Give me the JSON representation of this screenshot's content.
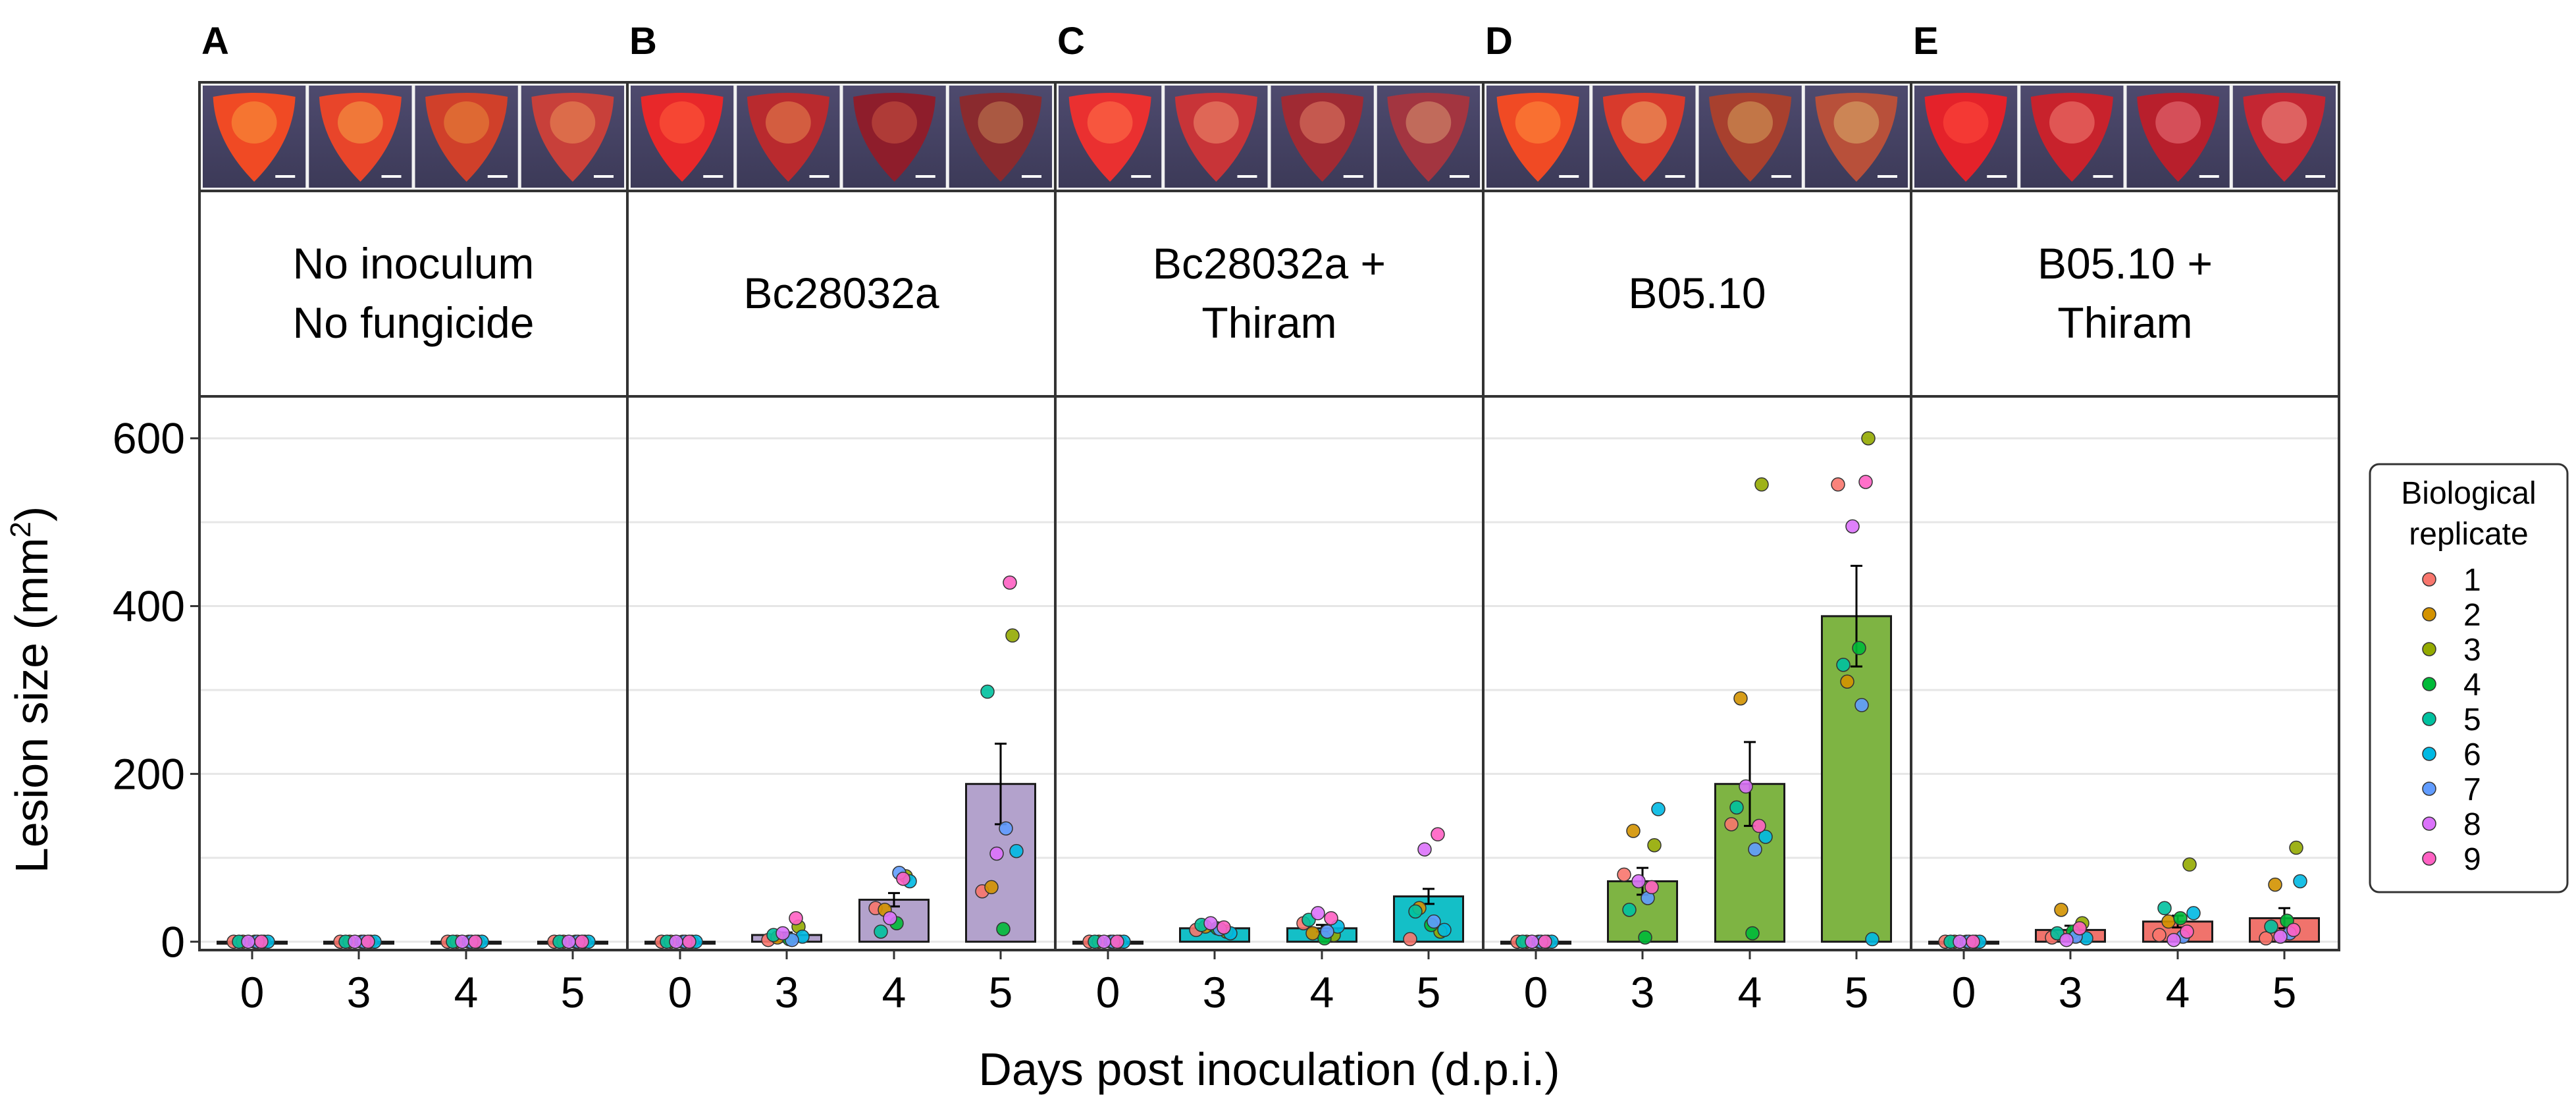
{
  "chart_data": {
    "type": "bar",
    "xlabel": "Days post inoculation (d.p.i.)",
    "ylabel": "Lesion size (mm",
    "ylabel_superscript": "2",
    "ylabel_close": ")",
    "ylim": [
      -10,
      650
    ],
    "yticks": [
      0,
      200,
      400,
      600
    ],
    "categories": [
      "0",
      "3",
      "4",
      "5"
    ],
    "legend": {
      "title_lines": [
        "Biological",
        "replicate"
      ],
      "position": "right",
      "entries": [
        "1",
        "2",
        "3",
        "4",
        "5",
        "6",
        "7",
        "8",
        "9"
      ],
      "colors": [
        "#F8766D",
        "#D39200",
        "#93AA00",
        "#00BA38",
        "#00C19F",
        "#00B9E3",
        "#619CFF",
        "#DB72FB",
        "#FF61C3"
      ]
    },
    "panels": [
      {
        "letter": "A",
        "title_lines": [
          "No inoculum",
          "No fungicide"
        ],
        "bar_color": "#ffffff",
        "means": [
          0,
          0,
          0,
          0
        ],
        "errors": [
          0,
          0,
          0,
          0
        ],
        "points": [
          [
            0,
            0,
            0,
            0,
            0,
            0,
            0,
            0,
            0
          ],
          [
            0,
            0,
            0,
            0,
            0,
            0,
            0,
            0,
            0
          ],
          [
            0,
            0,
            0,
            0,
            0,
            0,
            0,
            0,
            0
          ],
          [
            0,
            0,
            0,
            0,
            0,
            0,
            0,
            0,
            0
          ]
        ]
      },
      {
        "letter": "B",
        "title_lines": [
          "Bc28032a"
        ],
        "bar_color": "#B3A2CC",
        "means": [
          0,
          8,
          50,
          188
        ],
        "errors": [
          0,
          3,
          8,
          48
        ],
        "points": [
          [
            0,
            0,
            0,
            0,
            0,
            0,
            0,
            0,
            0
          ],
          [
            2,
            5,
            18,
            3,
            8,
            6,
            2,
            10,
            28
          ],
          [
            40,
            38,
            78,
            22,
            12,
            72,
            82,
            28,
            75
          ],
          [
            60,
            65,
            365,
            15,
            298,
            108,
            135,
            105,
            428
          ]
        ]
      },
      {
        "letter": "C",
        "title_lines": [
          "Bc28032a +",
          "Thiram"
        ],
        "bar_color": "#14BFC7",
        "means": [
          0,
          16,
          16,
          54
        ],
        "errors": [
          0,
          3,
          4,
          9
        ],
        "points": [
          [
            0,
            0,
            0,
            0,
            0,
            0,
            0,
            0,
            0
          ],
          [
            14,
            18,
            12,
            16,
            20,
            10,
            15,
            22,
            17
          ],
          [
            22,
            10,
            8,
            4,
            26,
            18,
            12,
            34,
            28
          ],
          [
            3,
            40,
            12,
            20,
            36,
            14,
            24,
            110,
            128
          ]
        ]
      },
      {
        "letter": "D",
        "title_lines": [
          "B05.10"
        ],
        "bar_color": "#7EB443",
        "means": [
          0,
          72,
          188,
          388
        ],
        "errors": [
          0,
          16,
          50,
          60
        ],
        "points": [
          [
            0,
            0,
            0,
            0,
            0,
            0,
            0,
            0,
            0
          ],
          [
            80,
            132,
            115,
            5,
            38,
            158,
            52,
            72,
            65
          ],
          [
            140,
            290,
            545,
            10,
            160,
            125,
            110,
            185,
            138
          ],
          [
            545,
            310,
            600,
            350,
            330,
            3,
            282,
            495,
            548
          ]
        ]
      },
      {
        "letter": "E",
        "title_lines": [
          "B05.10 +",
          "Thiram"
        ],
        "bar_color": "#F0736C",
        "means": [
          0,
          14,
          24,
          28
        ],
        "errors": [
          0,
          5,
          7,
          12
        ],
        "points": [
          [
            0,
            0,
            0,
            0,
            0,
            0,
            0,
            0,
            0
          ],
          [
            5,
            38,
            22,
            12,
            10,
            4,
            6,
            2,
            16
          ],
          [
            8,
            24,
            92,
            28,
            40,
            34,
            6,
            2,
            12
          ],
          [
            4,
            68,
            112,
            25,
            18,
            72,
            10,
            6,
            14
          ]
        ]
      }
    ]
  }
}
